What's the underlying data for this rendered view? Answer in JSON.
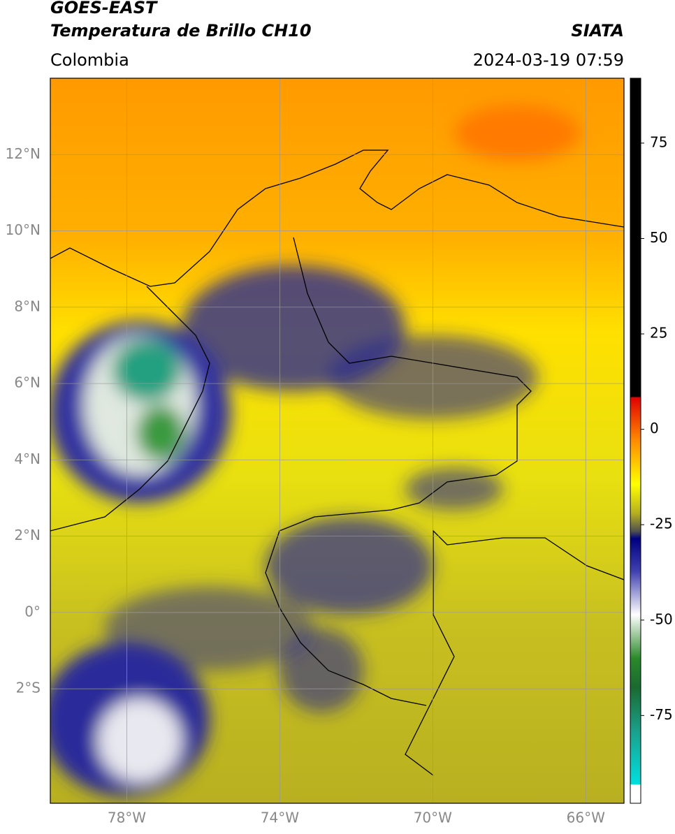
{
  "header": {
    "satellite": "GOES-EAST",
    "product": "Temperatura de Brillo CH10",
    "region": "Colombia",
    "source": "SIATA",
    "datetime": "2024-03-19 07:59"
  },
  "map": {
    "lonlim": [
      -80,
      -65
    ],
    "latlim": [
      -5,
      14
    ],
    "lon_ticks": [
      {
        "value": -78,
        "label": "78°W"
      },
      {
        "value": -74,
        "label": "74°W"
      },
      {
        "value": -70,
        "label": "70°W"
      },
      {
        "value": -66,
        "label": "66°W"
      }
    ],
    "lat_ticks": [
      {
        "value": 12,
        "label": "12°N"
      },
      {
        "value": 10,
        "label": "10°N"
      },
      {
        "value": 8,
        "label": "8°N"
      },
      {
        "value": 6,
        "label": "6°N"
      },
      {
        "value": 4,
        "label": "4°N"
      },
      {
        "value": 2,
        "label": "2°N"
      },
      {
        "value": 0,
        "label": "0°"
      },
      {
        "value": -2,
        "label": "2°S"
      }
    ],
    "grid": true
  },
  "colorbar": {
    "ylim": [
      -98,
      92
    ],
    "ticks": [
      75,
      50,
      25,
      0,
      -25,
      -50,
      -75
    ]
  }
}
